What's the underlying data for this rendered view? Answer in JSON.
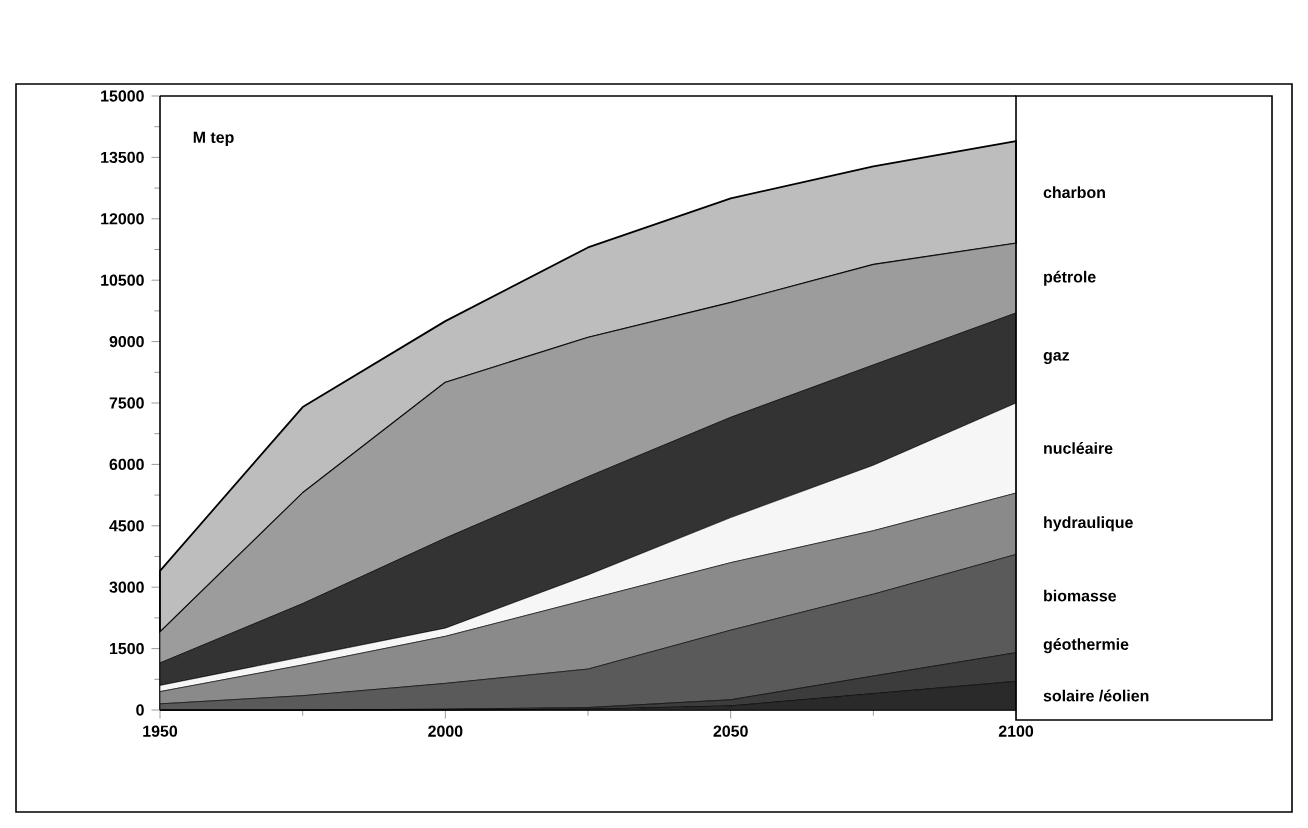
{
  "chart_data": {
    "type": "area",
    "stacked": true,
    "ylabel": "M tep",
    "x": [
      1950,
      1975,
      2000,
      2025,
      2050,
      2075,
      2100
    ],
    "series": [
      {
        "name": "solaire /éolien",
        "color": "#2a2a2a",
        "values": [
          0,
          0,
          0,
          20,
          100,
          400,
          700
        ]
      },
      {
        "name": "géothermie",
        "color": "#3c3c3c",
        "values": [
          0,
          0,
          20,
          40,
          150,
          430,
          700
        ]
      },
      {
        "name": "biomasse",
        "color": "#5a5a5a",
        "values": [
          150,
          350,
          630,
          940,
          1700,
          2000,
          2400
        ]
      },
      {
        "name": "hydraulique",
        "color": "#8a8a8a",
        "values": [
          300,
          750,
          1150,
          1700,
          1650,
          1550,
          1500
        ]
      },
      {
        "name": "nucléaire",
        "color": "#f6f6f6",
        "values": [
          150,
          200,
          200,
          600,
          1100,
          1600,
          2200
        ]
      },
      {
        "name": "gaz",
        "color": "#333333",
        "values": [
          550,
          1300,
          2200,
          2400,
          2450,
          2450,
          2200
        ]
      },
      {
        "name": "pétrole",
        "color": "#9c9c9c",
        "values": [
          750,
          2700,
          3800,
          3400,
          2800,
          2450,
          1700
        ]
      },
      {
        "name": "charbon",
        "color": "#bdbdbd",
        "values": [
          1500,
          2100,
          1500,
          2200,
          2550,
          2400,
          2500
        ]
      }
    ],
    "xlim": [
      1950,
      2100
    ],
    "xticks": [
      1950,
      2000,
      2050,
      2100
    ],
    "ylim": [
      0,
      15000
    ],
    "yticks": [
      0,
      1500,
      3000,
      4500,
      6000,
      7500,
      9000,
      10500,
      12000,
      13500,
      15000
    ],
    "grid": false,
    "legend": "right"
  }
}
